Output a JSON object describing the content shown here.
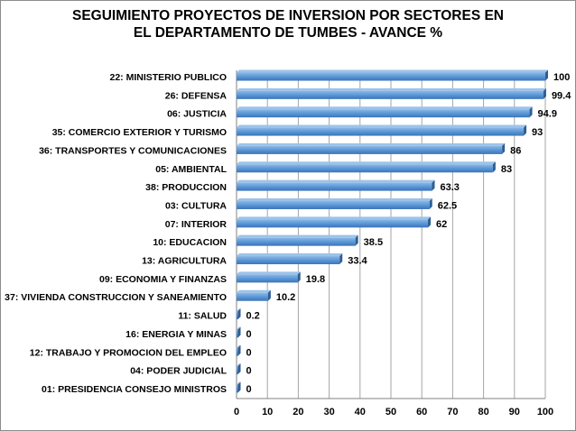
{
  "chart_data": {
    "type": "bar",
    "orientation": "horizontal",
    "title": "SEGUIMIENTO PROYECTOS DE INVERSION POR SECTORES EN\nEL DEPARTAMENTO DE TUMBES - AVANCE %",
    "categories": [
      "22: MINISTERIO PUBLICO",
      "26: DEFENSA",
      "06: JUSTICIA",
      "35: COMERCIO EXTERIOR Y TURISMO",
      "36: TRANSPORTES Y COMUNICACIONES",
      "05: AMBIENTAL",
      "38: PRODUCCION",
      "03: CULTURA",
      "07: INTERIOR",
      "10: EDUCACION",
      "13: AGRICULTURA",
      "09: ECONOMIA Y FINANZAS",
      "37: VIVIENDA CONSTRUCCION Y SANEAMIENTO",
      "11: SALUD",
      "16: ENERGIA Y MINAS",
      "12: TRABAJO Y PROMOCION DEL EMPLEO",
      "04: PODER JUDICIAL",
      "01: PRESIDENCIA CONSEJO MINISTROS"
    ],
    "values": [
      100,
      99.4,
      94.9,
      93,
      86,
      83,
      63.3,
      62.5,
      62,
      38.5,
      33.4,
      19.8,
      10.2,
      0.2,
      0,
      0,
      0,
      0
    ],
    "value_labels": [
      "100",
      "99.4",
      "94.9",
      "93",
      "86",
      "83",
      "63.3",
      "62.5",
      "62",
      "38.5",
      "33.4",
      "19.8",
      "10.2",
      "0.2",
      "0",
      "0",
      "0",
      "0"
    ],
    "xlim": [
      0,
      100
    ],
    "xticks": [
      0,
      10,
      20,
      30,
      40,
      50,
      60,
      70,
      80,
      90,
      100
    ],
    "grid": "vertical",
    "legend": "none",
    "bar_color": "#4f8fd0",
    "bar_dark_color": "#2e5e93",
    "grid_color": "#a6a6a6"
  }
}
